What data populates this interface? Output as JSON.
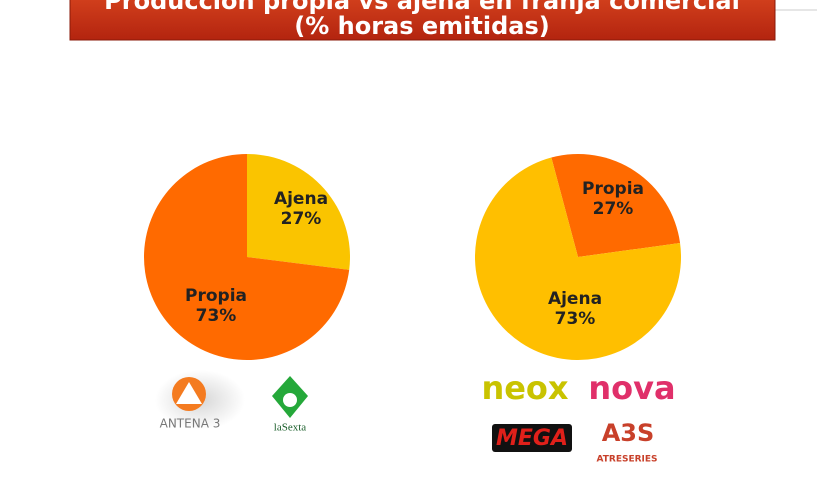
{
  "title": [
    "Producción propia vs ajena en franja comercial",
    "(% horas emitidas)"
  ],
  "chart_data": [
    {
      "type": "pie",
      "categories": [
        "Ajena",
        "Propia"
      ],
      "values": [
        27,
        73
      ],
      "value_labels": [
        "27%",
        "73%"
      ],
      "colors": [
        "#fac400",
        "#ff6a00"
      ]
    },
    {
      "type": "pie",
      "categories": [
        "Propia",
        "Ajena"
      ],
      "values": [
        27,
        73
      ],
      "value_labels": [
        "27%",
        "73%"
      ],
      "colors": [
        "#ff6a00",
        "#ffbf00"
      ]
    }
  ],
  "logos": [
    "ANTENA 3",
    "laSexta",
    "neox",
    "nova",
    "MEGA",
    "A3S",
    "ATRESERIES"
  ]
}
